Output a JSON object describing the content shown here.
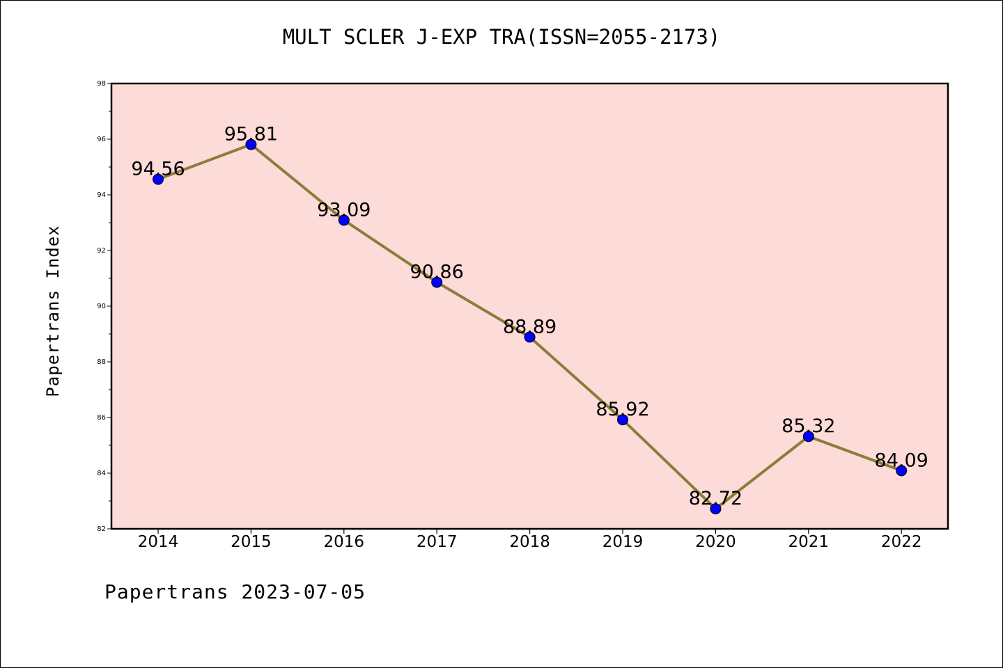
{
  "header": {
    "title": "MULT SCLER J-EXP TRA(ISSN=2055-2173)"
  },
  "footer": {
    "text": "Papertrans 2023-07-05"
  },
  "chart_data": {
    "type": "line",
    "title": "MULT SCLER J-EXP TRA(ISSN=2055-2173)",
    "xlabel": "",
    "ylabel": "Papertrans Index",
    "categories": [
      "2014",
      "2015",
      "2016",
      "2017",
      "2018",
      "2019",
      "2020",
      "2021",
      "2022"
    ],
    "series": [
      {
        "values": [
          94.56,
          95.81,
          93.09,
          90.86,
          88.89,
          85.92,
          82.72,
          85.32,
          84.09
        ],
        "labels": [
          "94.56",
          "95.81",
          "93.09",
          "90.86",
          "88.89",
          "85.92",
          "82.72",
          "85.32",
          "84.09"
        ]
      }
    ],
    "ylim": [
      82,
      98
    ],
    "yticks": [
      82,
      84,
      86,
      88,
      90,
      92,
      94,
      96,
      98
    ],
    "grid": false,
    "legend": "none",
    "colors": {
      "plot_background": "#fddbd8",
      "line": "#8b7d3a",
      "marker": "#0000ff",
      "marker_edge": "#000000"
    }
  }
}
